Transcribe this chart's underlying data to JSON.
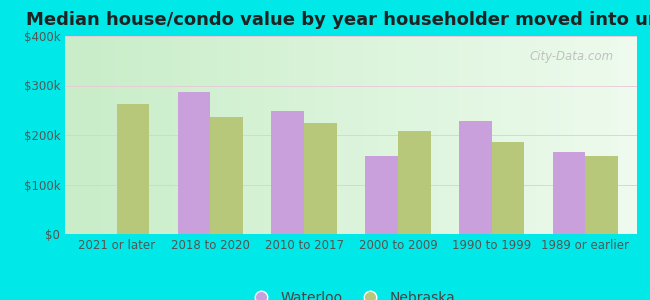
{
  "title": "Median house/condo value by year householder moved into unit",
  "categories": [
    "2021 or later",
    "2018 to 2020",
    "2010 to 2017",
    "2000 to 2009",
    "1990 to 1999",
    "1989 or earlier"
  ],
  "waterloo": [
    null,
    287000,
    248000,
    158000,
    228000,
    165000
  ],
  "nebraska": [
    262000,
    237000,
    225000,
    208000,
    185000,
    157000
  ],
  "waterloo_color": "#c9a0dc",
  "nebraska_color": "#b8c87a",
  "background_outer": "#00e8e8",
  "ylim": [
    0,
    400000
  ],
  "yticks": [
    0,
    100000,
    200000,
    300000,
    400000
  ],
  "ytick_labels": [
    "$0",
    "$100k",
    "$200k",
    "$300k",
    "$400k"
  ],
  "waterloo_label": "Waterloo",
  "nebraska_label": "Nebraska",
  "bar_width": 0.35,
  "title_fontsize": 13,
  "tick_fontsize": 8.5,
  "legend_fontsize": 10,
  "grid_color": "#ddeecc",
  "plot_bg_left": "#c8eec8",
  "plot_bg_right": "#f0fff0"
}
